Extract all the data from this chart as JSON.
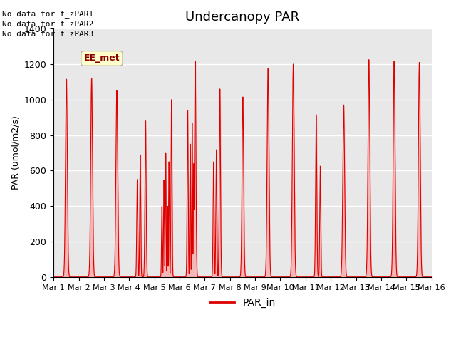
{
  "title": "Undercanopy PAR",
  "ylabel": "PAR (umol/m2/s)",
  "xlabel": "",
  "ylim": [
    0,
    1400
  ],
  "yticks": [
    0,
    200,
    400,
    600,
    800,
    1000,
    1200,
    1400
  ],
  "xtick_labels": [
    "Mar 1",
    "Mar 2",
    "Mar 3",
    "Mar 4",
    "Mar 5",
    "Mar 6",
    "Mar 7",
    "Mar 8",
    "Mar 9",
    "Mar 10",
    "Mar 11",
    "Mar 12",
    "Mar 13",
    "Mar 14",
    "Mar 15",
    "Mar 16"
  ],
  "no_data_texts": [
    "No data for f_zPAR1",
    "No data for f_zPAR2",
    "No data for f_zPAR3"
  ],
  "ee_met_label": "EE_met",
  "legend_label": "PAR_in",
  "line_color": "#dd0000",
  "fill_color": "#ff9999",
  "background_color": "#e8e8e8",
  "title_fontsize": 13,
  "days": 15
}
